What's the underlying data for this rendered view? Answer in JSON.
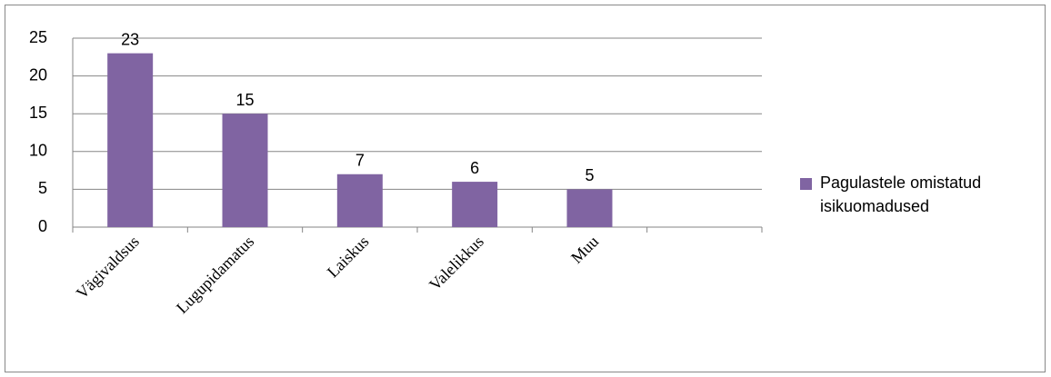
{
  "chart_data": {
    "type": "bar",
    "categories": [
      "Vägivaldsus",
      "Lugupidamatus",
      "Laiskus",
      "Valelikkus",
      "Muu",
      null
    ],
    "series": [
      {
        "name": "Pagulastele omistatud isikuomadused",
        "color": "#8064a2",
        "values": [
          23,
          15,
          7,
          6,
          5,
          null
        ]
      }
    ],
    "ylim": [
      0,
      25
    ],
    "yticks": [
      0,
      5,
      10,
      15,
      20,
      25
    ],
    "grid": true,
    "legend": "right"
  }
}
